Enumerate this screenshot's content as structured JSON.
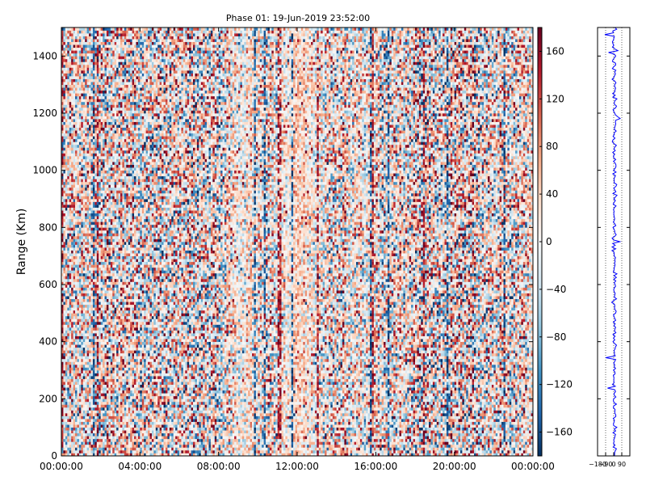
{
  "chart_data": {
    "type": "heatmap",
    "title": "Phase 01: 19-Jun-2019 23:52:00",
    "ylabel": "Range (Km)",
    "xlabel": "",
    "x_ticks": [
      "00:00:00",
      "04:00:00",
      "08:00:00",
      "12:00:00",
      "16:00:00",
      "20:00:00",
      "00:00:00"
    ],
    "x_range_hours": [
      0,
      24
    ],
    "ylim": [
      0,
      1500
    ],
    "y_ticks": [
      0,
      200,
      400,
      600,
      800,
      1000,
      1200,
      1400
    ],
    "colorbar": {
      "range": [
        -180,
        180
      ],
      "ticks": [
        -160,
        -120,
        -80,
        -40,
        0,
        40,
        80,
        120,
        160
      ],
      "colormap": "RdBu_r",
      "colors": [
        "#053061",
        "#2166ac",
        "#4393c3",
        "#92c5de",
        "#d1e5f0",
        "#f7f7f7",
        "#fddbc7",
        "#f4a582",
        "#d6604d",
        "#b2182b",
        "#67001f"
      ]
    },
    "profile_panel": {
      "xlim": [
        -180,
        180
      ],
      "x_ticks": [
        "−180",
        "−90",
        "0",
        "90"
      ],
      "line_color": "#0000ff",
      "gridlines": [
        -90,
        0,
        90
      ]
    }
  }
}
